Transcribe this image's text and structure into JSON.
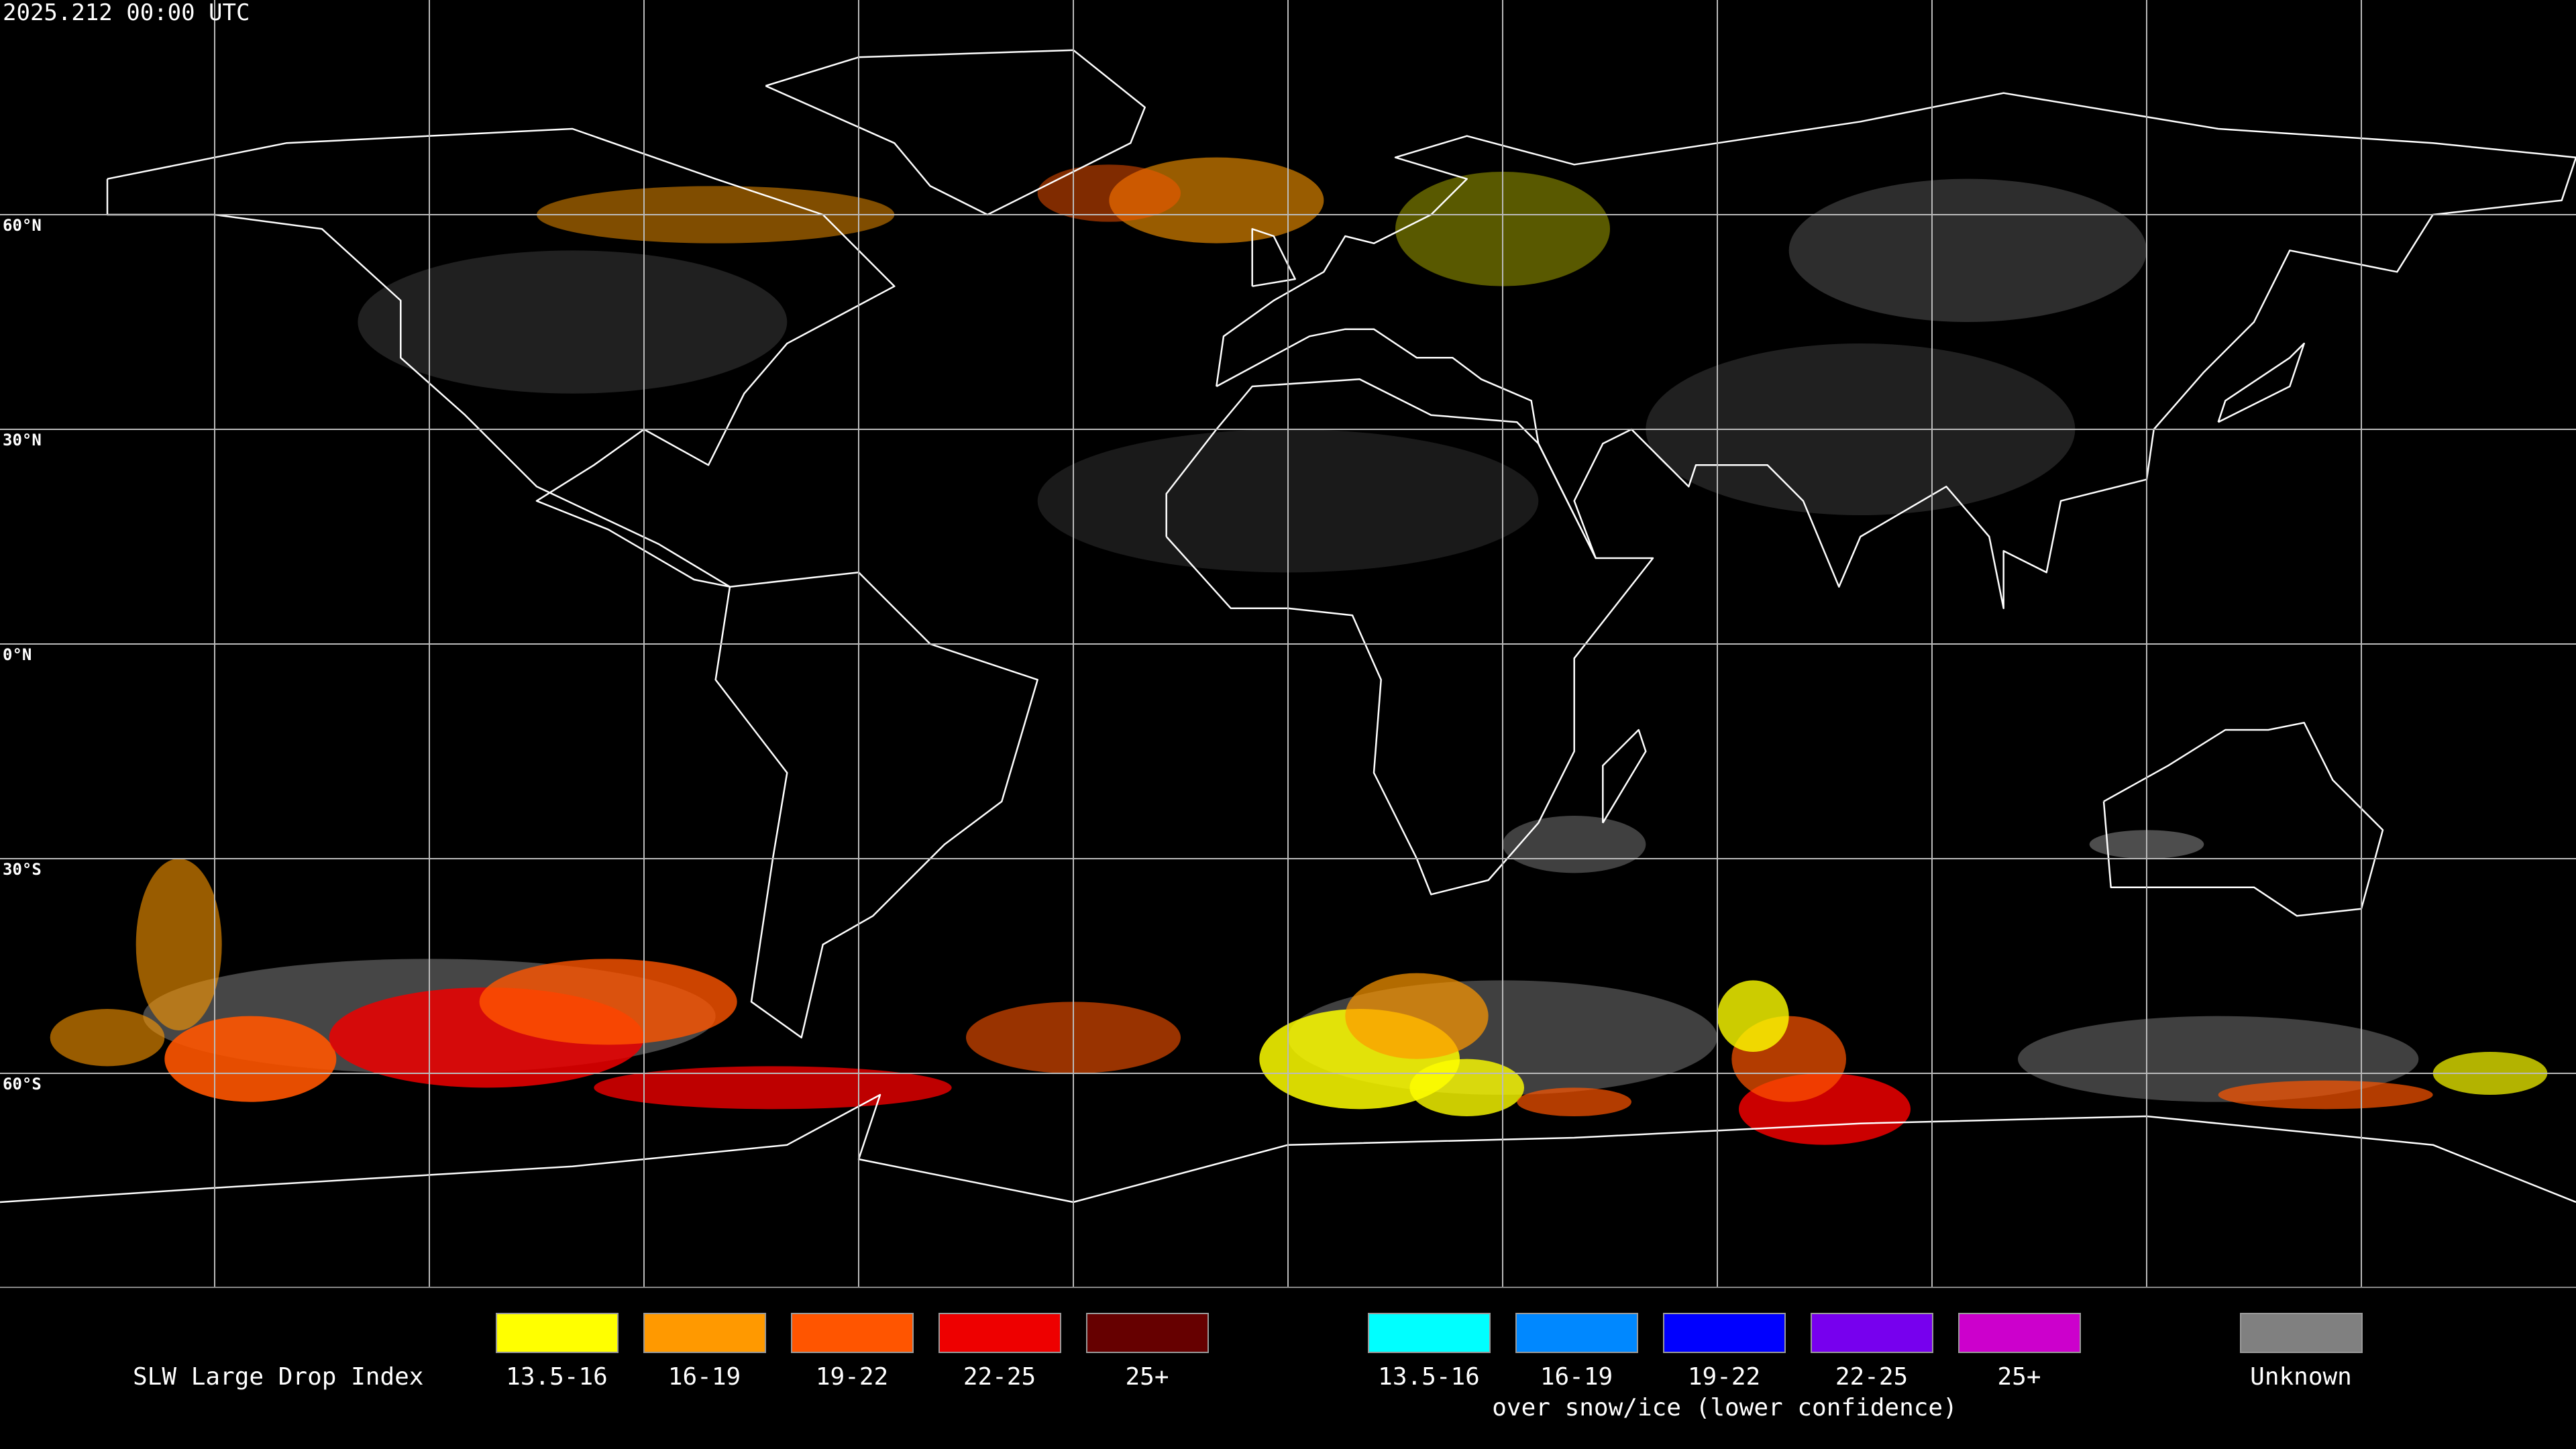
{
  "header": {
    "timestamp": "2025.212 00:00 UTC"
  },
  "map": {
    "latitude_labels": [
      "60°N",
      "30°N",
      "0°N",
      "30°S",
      "60°S"
    ]
  },
  "legend": {
    "title": "SLW Large Drop Index",
    "items": [
      {
        "label": "13.5-16",
        "color": "#ffff00"
      },
      {
        "label": "16-19",
        "color": "#ff9900"
      },
      {
        "label": "19-22",
        "color": "#ff5500"
      },
      {
        "label": "22-25",
        "color": "#ee0000"
      },
      {
        "label": "25+",
        "color": "#660000"
      }
    ],
    "snow_ice_items": [
      {
        "label": "13.5-16",
        "color": "#00ffff"
      },
      {
        "label": "16-19",
        "color": "#0088ff"
      },
      {
        "label": "19-22",
        "color": "#0000ff"
      },
      {
        "label": "22-25",
        "color": "#7700ee"
      },
      {
        "label": "25+",
        "color": "#cc00cc"
      }
    ],
    "snow_ice_caption": "over snow/ice (lower confidence)",
    "unknown": {
      "label": "Unknown",
      "color": "#808080"
    }
  }
}
